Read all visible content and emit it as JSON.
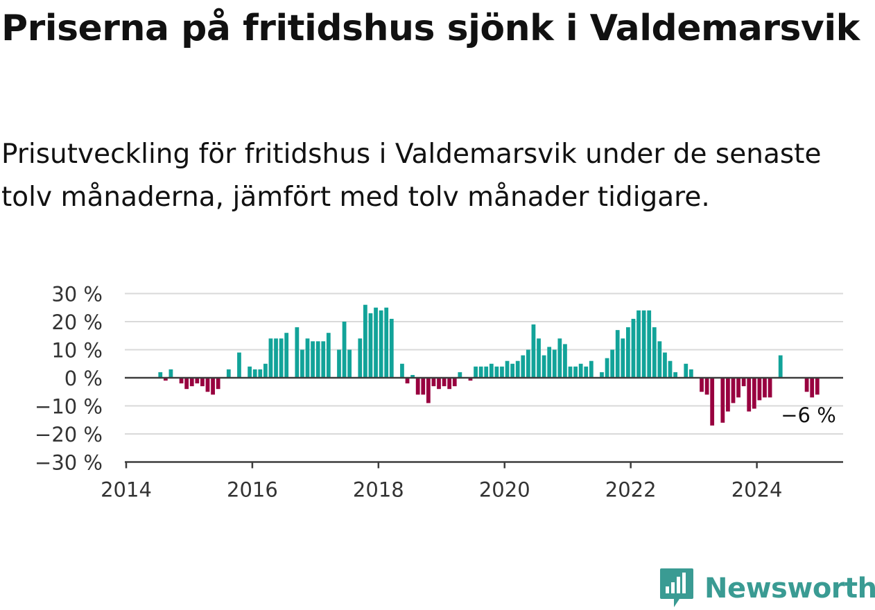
{
  "title": "Priserna på fritidshus sjönk i Valdemarsvik",
  "subtitle": "Prisutveckling för fritidshus i Valdemarsvik under de senaste tolv månaderna, jämfört med tolv månader tidigare.",
  "brand": {
    "name": "Newsworthy",
    "icon": "newsworthy-logo-icon",
    "color": "#3a9b93"
  },
  "colors": {
    "positive": "#12a399",
    "negative": "#98003f",
    "zero_line": "#3c3c3c",
    "grid": "#d9d9d9",
    "axis_text": "#333333"
  },
  "chart_data": {
    "type": "bar",
    "x_start": "2014-01",
    "y_ticks": [
      30,
      20,
      10,
      0,
      -10,
      -20,
      -30
    ],
    "y_tick_labels": [
      "30 %",
      "20 %",
      "10 %",
      "0 %",
      "−10 %",
      "−20 %",
      "−30 %"
    ],
    "ylim": [
      -30,
      30
    ],
    "x_ticks": [
      "2014",
      "2016",
      "2018",
      "2020",
      "2022",
      "2024"
    ],
    "grid": true,
    "annotation": "−6 %",
    "values": [
      null,
      null,
      null,
      null,
      null,
      null,
      2,
      -1,
      3,
      null,
      -2,
      -4,
      -3,
      -2,
      -3,
      -5,
      -6,
      -4,
      null,
      3,
      null,
      9,
      null,
      4,
      3,
      3,
      5,
      14,
      14,
      14,
      16,
      null,
      18,
      10,
      14,
      13,
      13,
      13,
      16,
      null,
      10,
      20,
      10,
      null,
      14,
      26,
      23,
      25,
      24,
      25,
      21,
      null,
      5,
      -2,
      1,
      -6,
      -6,
      -9,
      -3,
      -4,
      -3,
      -4,
      -3,
      2,
      null,
      -1,
      4,
      4,
      4,
      5,
      4,
      4,
      6,
      5,
      6,
      8,
      10,
      19,
      14,
      8,
      11,
      10,
      14,
      12,
      4,
      4,
      5,
      4,
      6,
      null,
      2,
      7,
      10,
      17,
      14,
      18,
      21,
      24,
      24,
      24,
      18,
      13,
      9,
      6,
      2,
      null,
      5,
      3,
      null,
      -5,
      -6,
      -17,
      null,
      -16,
      -12,
      -9,
      -7,
      -3,
      -12,
      -11,
      -8,
      -7,
      -7,
      null,
      8,
      null,
      null,
      null,
      null,
      -5,
      -7,
      -6
    ]
  }
}
